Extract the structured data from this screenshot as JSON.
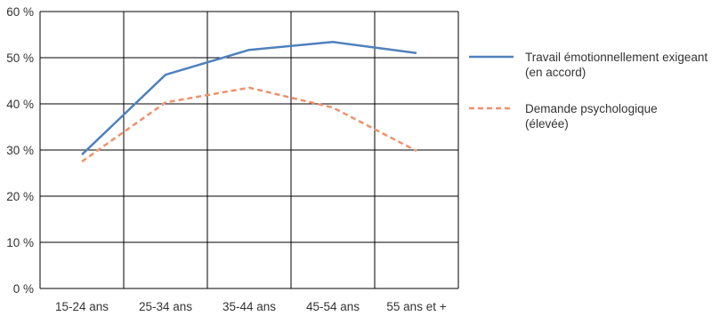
{
  "chart_data": {
    "type": "line",
    "categories": [
      "15-24 ans",
      "25-34 ans",
      "35-44 ans",
      "45-54 ans",
      "55 ans et +"
    ],
    "y_ticks": [
      "0 %",
      "10 %",
      "20 %",
      "30 %",
      "40 %",
      "50 %",
      "60 %"
    ],
    "ylim": [
      0,
      60
    ],
    "grid": true,
    "legend_position": "right",
    "series": [
      {
        "name_lines": [
          "Travail émotionnellement exigeant",
          "(en accord)"
        ],
        "values": [
          29,
          46.3,
          51.7,
          53.4,
          51
        ],
        "color": "#4f81bd",
        "style": "solid"
      },
      {
        "name_lines": [
          "Demande psychologique",
          "(élevée)"
        ],
        "values": [
          27.5,
          40.3,
          43.5,
          39.2,
          29.8
        ],
        "color": "#f0906a",
        "style": "dashed"
      }
    ]
  }
}
